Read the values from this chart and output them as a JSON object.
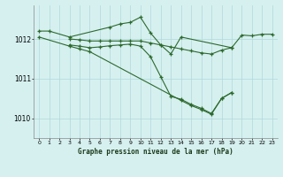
{
  "background_color": "#d6f0f0",
  "grid_color": "#b0d8d8",
  "line_color": "#2d6a2d",
  "title": "Graphe pression niveau de la mer (hPa)",
  "xlim": [
    -0.5,
    23.5
  ],
  "ylim": [
    1009.5,
    1012.85
  ],
  "yticks": [
    1010,
    1011,
    1012
  ],
  "xticks": [
    0,
    1,
    2,
    3,
    4,
    5,
    6,
    7,
    8,
    9,
    10,
    11,
    12,
    13,
    14,
    15,
    16,
    17,
    18,
    19,
    20,
    21,
    22,
    23
  ],
  "series": [
    {
      "x": [
        0,
        1,
        3,
        7,
        8,
        9,
        10,
        11,
        12,
        13,
        14,
        19,
        20,
        21,
        22,
        23
      ],
      "y": [
        1012.2,
        1012.2,
        1012.05,
        1012.3,
        1012.38,
        1012.42,
        1012.55,
        1012.15,
        1011.85,
        1011.62,
        1012.05,
        1011.78,
        1012.1,
        1012.08,
        1012.12,
        1012.12
      ]
    },
    {
      "x": [
        3,
        4,
        5,
        6,
        7,
        8,
        9,
        10,
        11,
        12,
        13,
        14,
        15,
        16,
        17,
        18,
        19
      ],
      "y": [
        1012.0,
        1011.98,
        1011.95,
        1011.95,
        1011.95,
        1011.95,
        1011.95,
        1011.95,
        1011.9,
        1011.85,
        1011.8,
        1011.75,
        1011.7,
        1011.65,
        1011.62,
        1011.72,
        1011.78
      ]
    },
    {
      "x": [
        3,
        4,
        5,
        6,
        7,
        8,
        9,
        10,
        11,
        12,
        13,
        14,
        15,
        16,
        17,
        18,
        19
      ],
      "y": [
        1011.85,
        1011.82,
        1011.78,
        1011.8,
        1011.83,
        1011.85,
        1011.87,
        1011.82,
        1011.55,
        1011.05,
        1010.55,
        1010.48,
        1010.35,
        1010.25,
        1010.12,
        1010.5,
        1010.65
      ]
    },
    {
      "x": [
        0,
        3,
        4,
        5,
        14,
        15,
        16,
        17,
        18,
        19
      ],
      "y": [
        1012.05,
        1011.82,
        1011.75,
        1011.68,
        1010.45,
        1010.32,
        1010.22,
        1010.1,
        1010.5,
        1010.65
      ]
    }
  ]
}
